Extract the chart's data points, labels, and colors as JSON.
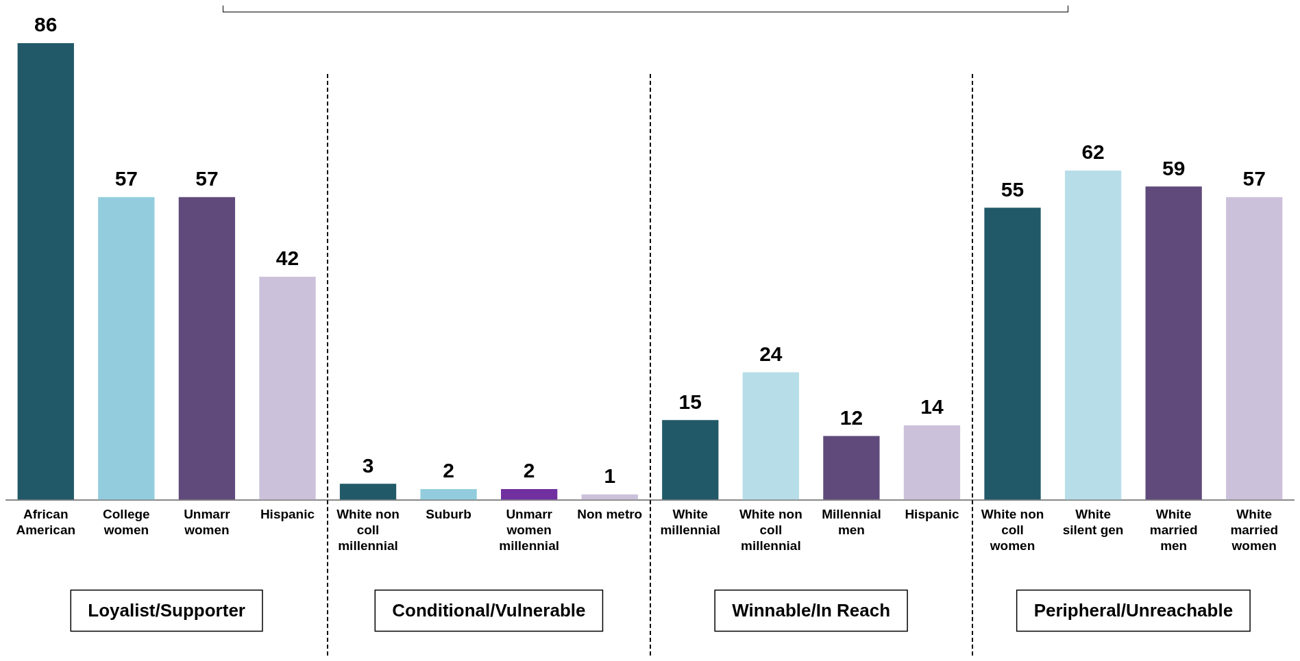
{
  "chart_data": {
    "type": "bar",
    "categories": [
      "African American",
      "College women",
      "Unmarr women",
      "Hispanic",
      "White non coll millennial",
      "Suburb",
      "Unmarr women millennial",
      "Non metro",
      "White millennial",
      "White non coll millennial",
      "Millennial men",
      "Hispanic",
      "White non coll women",
      "White silent gen",
      "White married men",
      "White married women"
    ],
    "values": [
      86,
      57,
      57,
      42,
      3,
      2,
      2,
      1,
      15,
      24,
      12,
      14,
      55,
      62,
      59,
      57
    ],
    "colors": [
      "#215968",
      "#93cddd",
      "#604a7b",
      "#ccc1da",
      "#215968",
      "#93cddd",
      "#7030a0",
      "#ccc1da",
      "#215968",
      "#b7dee8",
      "#604a7b",
      "#ccc1da",
      "#215968",
      "#b7dee8",
      "#604a7b",
      "#ccc1da"
    ],
    "tick_labels": "x",
    "data_labels": true,
    "legend": false,
    "annotations": [
      "Loyalist/Supporter",
      "Conditional/Vulnerable",
      "Winnable/In Reach",
      "Peripheral/Unreachable"
    ]
  }
}
